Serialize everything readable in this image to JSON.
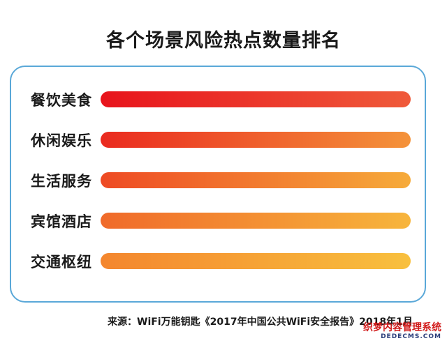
{
  "title": "各个场景风险热点数量排名",
  "source": "来源：WiFi万能钥匙《2017年中国公共WiFi安全报告》2018年1月",
  "watermark": {
    "line1": "织梦内容管理系统",
    "line2": "DEDECMS.COM"
  },
  "colors": {
    "frame": "#5aa8d8",
    "gradient": [
      [
        "#e8141c",
        "#ef5a3a"
      ],
      [
        "#ea2a1f",
        "#f4933a"
      ],
      [
        "#ee4a24",
        "#f6ab3a"
      ],
      [
        "#f06a2a",
        "#f7b53c"
      ],
      [
        "#f4862e",
        "#f8c03e"
      ]
    ]
  },
  "chart_data": {
    "type": "bar",
    "orientation": "horizontal",
    "title": "各个场景风险热点数量排名",
    "categories": [
      "餐饮美食",
      "休闲娱乐",
      "生活服务",
      "宾馆酒店",
      "交通枢纽"
    ],
    "values": [
      1,
      1,
      1,
      1,
      1
    ],
    "ranking": [
      1,
      2,
      3,
      4,
      5
    ],
    "xlabel": "",
    "ylabel": "",
    "grid": false,
    "legend": "none"
  }
}
